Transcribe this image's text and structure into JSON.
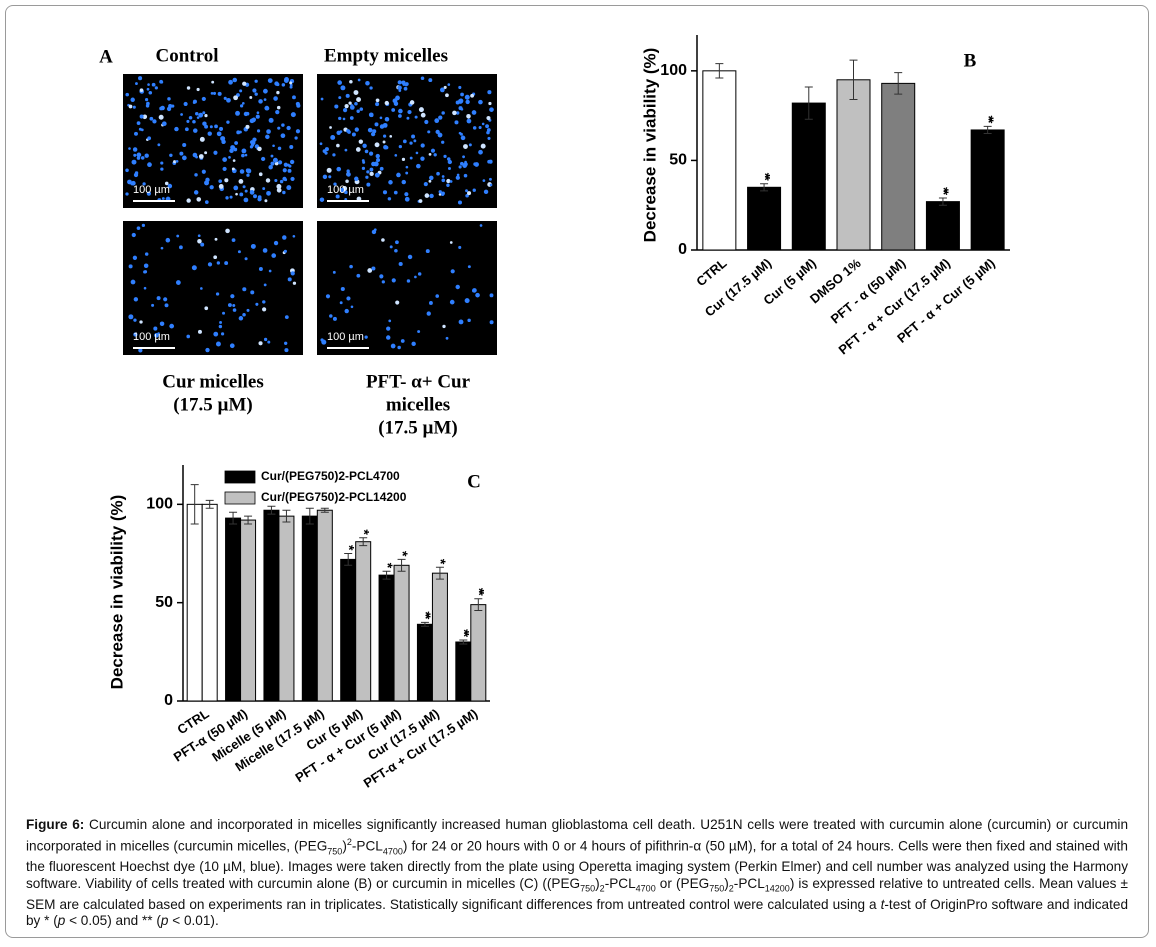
{
  "panel_a": {
    "label": "A",
    "images": [
      {
        "title_lines": [
          "Control"
        ],
        "scale_bar": "100 µm"
      },
      {
        "title_lines": [
          "Empty micelles"
        ],
        "scale_bar": "100 µm"
      },
      {
        "title_lines": [
          "Cur micelles",
          "(17.5 µM)"
        ],
        "scale_bar": "100 µm"
      },
      {
        "title_lines": [
          "PFT- α+ Cur",
          "micelles",
          "(17.5 µM)"
        ],
        "scale_bar": "100 µm"
      }
    ]
  },
  "chart_data": [
    {
      "type": "bar",
      "panel_label": "B",
      "y_label": "Decrease in viability (%)",
      "categories": [
        "CTRL",
        "Cur (17.5 µM)",
        "Cur (5 µM)",
        "DMSO 1%",
        "PFT - α (50 µM)",
        "PFT - α + Cur (17.5 µM)",
        "PFT - α + Cur (5 µM)"
      ],
      "series": [
        {
          "colors": [
            "#ffffff",
            "#000000",
            "#000000",
            "#c0c0c0",
            "#7f7f7f",
            "#000000",
            "#000000"
          ],
          "values": [
            100,
            35,
            82,
            95,
            93,
            27,
            67
          ],
          "errors": [
            4,
            2,
            9,
            11,
            6,
            2,
            2
          ],
          "significance": [
            null,
            "**",
            null,
            null,
            null,
            "**",
            "**"
          ]
        }
      ],
      "ylim": [
        0,
        120
      ],
      "yticks": [
        0,
        50,
        100
      ]
    },
    {
      "type": "bar",
      "panel_label": "C",
      "y_label": "Decrease in viability (%)",
      "categories": [
        "CTRL",
        "PFT-α (50 µM)",
        "Micelle (5 µM)",
        "Micelle (17.5 µM)",
        "Cur (5 µM)",
        "PFT - α + Cur (5 µM)",
        "Cur (17.5 µM)",
        "PFT-α + Cur (17.5 µM)"
      ],
      "series": [
        {
          "name": "Cur/(PEG750)2-PCL4700",
          "color": "#000000",
          "colors": [
            "#ffffff",
            "#000000",
            "#000000",
            "#000000",
            "#000000",
            "#000000",
            "#000000",
            "#000000"
          ],
          "values": [
            100,
            93,
            97,
            94,
            72,
            64,
            39,
            30
          ],
          "errors": [
            10,
            3,
            2,
            4,
            3,
            2,
            1,
            1
          ],
          "significance": [
            null,
            null,
            null,
            null,
            "*",
            "*",
            "**",
            "**"
          ]
        },
        {
          "name": "Cur/(PEG750)2-PCL14200",
          "color": "#c0c0c0",
          "colors": [
            "#ffffff",
            "#c0c0c0",
            "#c0c0c0",
            "#c0c0c0",
            "#c0c0c0",
            "#c0c0c0",
            "#c0c0c0",
            "#c0c0c0"
          ],
          "values": [
            100,
            92,
            94,
            97,
            81,
            69,
            65,
            49
          ],
          "errors": [
            2,
            2,
            3,
            1,
            2,
            3,
            3,
            3
          ],
          "significance": [
            null,
            null,
            null,
            null,
            "*",
            "*",
            "*",
            "**"
          ]
        }
      ],
      "ylim": [
        0,
        120
      ],
      "yticks": [
        0,
        50,
        100
      ]
    }
  ],
  "caption": {
    "runs": [
      {
        "text": "Figure 6:",
        "style": "bold"
      },
      {
        "text": " Curcumin alone and incorporated in micelles significantly increased human glioblastoma cell death. U251N cells were treated with curcumin alone (curcumin) or curcumin incorporated in micelles (curcumin micelles, (PEG"
      },
      {
        "text": "750",
        "style": "sub"
      },
      {
        "text": ")"
      },
      {
        "text": "2",
        "style": "sup"
      },
      {
        "text": "-PCL"
      },
      {
        "text": "4700",
        "style": "sub"
      },
      {
        "text": ") for 24 or 20 hours with 0 or 4 hours of pifithrin-α (50 µM), for a total of 24 hours. Cells were then fixed and stained with the fluorescent Hoechst dye (10 µM, blue). Images were taken directly from the plate using Operetta imaging system (Perkin Elmer) and cell number was analyzed using the Harmony software.  Viability of cells treated with curcumin alone (B) or curcumin in micelles (C) ((PEG"
      },
      {
        "text": "750",
        "style": "sub"
      },
      {
        "text": ")"
      },
      {
        "text": "2",
        "style": "sub"
      },
      {
        "text": "-PCL"
      },
      {
        "text": "4700",
        "style": "sub"
      },
      {
        "text": " or (PEG"
      },
      {
        "text": "750",
        "style": "sub"
      },
      {
        "text": ")"
      },
      {
        "text": "2",
        "style": "sub"
      },
      {
        "text": "-PCL"
      },
      {
        "text": "14200",
        "style": "sub"
      },
      {
        "text": ") is expressed relative to untreated cells. Mean values ± SEM are calculated based on experiments ran in triplicates. Statistically significant differences from untreated control were calculated using a "
      },
      {
        "text": "t",
        "style": "italic"
      },
      {
        "text": "-test of OriginPro software and indicated by * ("
      },
      {
        "text": "p",
        "style": "italic"
      },
      {
        "text": " < 0.05) and ** ("
      },
      {
        "text": "p",
        "style": "italic"
      },
      {
        "text": " < 0.01)."
      }
    ]
  }
}
